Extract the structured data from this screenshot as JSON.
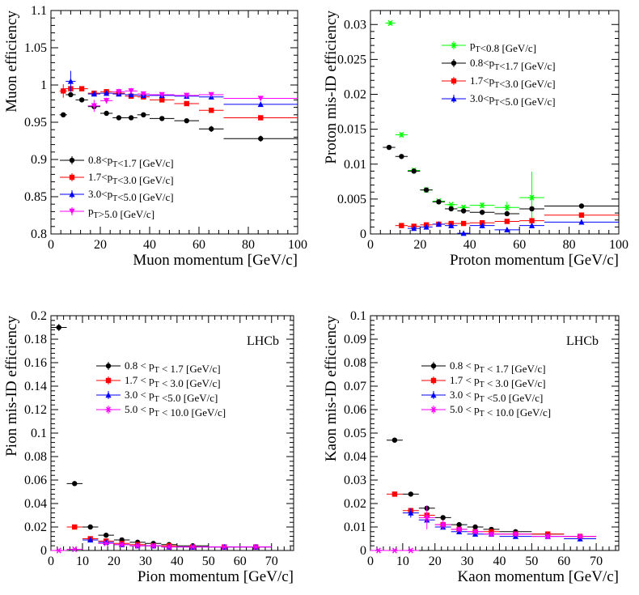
{
  "chart_data": [
    {
      "id": "muon",
      "type": "scatter",
      "xlabel": "Muon momentum [GeV/c]",
      "ylabel": "Muon efficiency",
      "xlim": [
        0,
        100
      ],
      "ylim": [
        0.8,
        1.1
      ],
      "xticks": [
        0,
        20,
        40,
        60,
        80,
        100
      ],
      "yticks": [
        0.8,
        0.85,
        0.9,
        0.95,
        1,
        1.05,
        1.1
      ],
      "ytick_labels": [
        "0.8",
        "0.85",
        "0.9",
        "0.95",
        "1",
        "1.05",
        "1.1"
      ],
      "legend_position": "bottom-left",
      "brand": "",
      "series": [
        {
          "name": "0.8<p_T<1.7 [GeV/c]",
          "color": "#000000",
          "marker": "circle",
          "x": [
            5,
            8,
            12.5,
            17.5,
            22.5,
            27.5,
            32.5,
            37.5,
            45,
            55,
            65,
            85
          ],
          "xerr": [
            1.5,
            2,
            2.5,
            2.5,
            2.5,
            2.5,
            2.5,
            2.5,
            5,
            5,
            5,
            15
          ],
          "y": [
            0.96,
            0.987,
            0.98,
            0.971,
            0.962,
            0.956,
            0.956,
            0.96,
            0.955,
            0.952,
            0.941,
            0.928
          ],
          "yerr": [
            0.002,
            0.002,
            0.002,
            0.002,
            0.002,
            0.002,
            0.002,
            0.002,
            0.002,
            0.003,
            0.004,
            0.004
          ]
        },
        {
          "name": "1.7<p_T<3.0 [GeV/c]",
          "color": "#ff0000",
          "marker": "square",
          "x": [
            5,
            8,
            12.5,
            17.5,
            22.5,
            27.5,
            32.5,
            37.5,
            45,
            55,
            65,
            85
          ],
          "xerr": [
            1.5,
            2,
            2.5,
            2.5,
            2.5,
            2.5,
            2.5,
            2.5,
            5,
            5,
            5,
            15
          ],
          "y": [
            0.992,
            0.995,
            0.995,
            0.989,
            0.991,
            0.989,
            0.985,
            0.984,
            0.98,
            0.975,
            0.966,
            0.956
          ],
          "yerr": [
            0.009,
            0.004,
            0.002,
            0.002,
            0.002,
            0.002,
            0.002,
            0.002,
            0.002,
            0.002,
            0.002,
            0.002
          ]
        },
        {
          "name": "3.0<p_T<5.0 [GeV/c]",
          "color": "#0000ff",
          "marker": "triangle",
          "x": [
            8,
            17.5,
            22.5,
            27.5,
            32.5,
            37.5,
            45,
            55,
            65,
            85
          ],
          "xerr": [
            2,
            2.5,
            2.5,
            2.5,
            2.5,
            2.5,
            5,
            5,
            5,
            15
          ],
          "y": [
            1.005,
            0.988,
            0.989,
            0.988,
            0.987,
            0.986,
            0.986,
            0.985,
            0.984,
            0.974
          ],
          "yerr": [
            0.014,
            0.003,
            0.002,
            0.002,
            0.002,
            0.002,
            0.002,
            0.002,
            0.002,
            0.002
          ]
        },
        {
          "name": "p_T>5.0 [GeV/c]",
          "color": "#ff00ff",
          "marker": "triangle-down",
          "x": [
            17.5,
            22.5,
            27.5,
            32.5,
            37.5,
            45,
            55,
            65,
            85
          ],
          "xerr": [
            2.5,
            2.5,
            2.5,
            2.5,
            2.5,
            5,
            5,
            5,
            15
          ],
          "y": [
            0.972,
            0.979,
            0.991,
            0.992,
            0.988,
            0.987,
            0.986,
            0.987,
            0.982
          ],
          "yerr": [
            0.008,
            0.004,
            0.004,
            0.004,
            0.003,
            0.002,
            0.002,
            0.002,
            0.002
          ]
        }
      ]
    },
    {
      "id": "proton",
      "type": "scatter",
      "xlabel": "Proton momentum [GeV/c]",
      "ylabel": "Proton  mis-ID efficiency",
      "xlim": [
        0,
        100
      ],
      "ylim": [
        0,
        0.032
      ],
      "xticks": [
        0,
        20,
        40,
        60,
        80,
        100
      ],
      "yticks": [
        0,
        0.005,
        0.01,
        0.015,
        0.02,
        0.025,
        0.03
      ],
      "ytick_labels": [
        "0",
        "0.005",
        "0.01",
        "0.015",
        "0.02",
        "0.025",
        "0.03"
      ],
      "legend_position": "top-right",
      "brand": "",
      "series": [
        {
          "name": "p_T<0.8 [GeV/c]",
          "color": "#00ff00",
          "marker": "star",
          "x": [
            8,
            12.5,
            17.5,
            22.5,
            27.5,
            32.5,
            37.5,
            45,
            55,
            65
          ],
          "xerr": [
            2,
            2.5,
            2.5,
            2.5,
            2.5,
            2.5,
            2.5,
            5,
            5,
            5
          ],
          "y": [
            0.0302,
            0.0142,
            0.0091,
            0.0063,
            0.0047,
            0.0042,
            0.0038,
            0.0041,
            0.0038,
            0.0052
          ],
          "yerr": [
            0.0003,
            0.0003,
            0.0003,
            0.0002,
            0.0002,
            0.0002,
            0.0003,
            0.0004,
            0.0008,
            0.0037
          ]
        },
        {
          "name": "0.8<p_T<1.7 [GeV/c]",
          "color": "#000000",
          "marker": "circle",
          "x": [
            7.5,
            12.5,
            17.5,
            22.5,
            27.5,
            32.5,
            37.5,
            45,
            55,
            65,
            85
          ],
          "xerr": [
            2.5,
            2.5,
            2.5,
            2.5,
            2.5,
            2.5,
            2.5,
            5,
            5,
            5,
            15
          ],
          "y": [
            0.0124,
            0.0111,
            0.009,
            0.0063,
            0.0046,
            0.0036,
            0.0033,
            0.0031,
            0.0029,
            0.0036,
            0.004
          ],
          "yerr": [
            0.0002,
            0.0002,
            0.0002,
            0.0002,
            0.0002,
            0.0002,
            0.0002,
            0.0002,
            0.0002,
            0.0003,
            0.0003
          ]
        },
        {
          "name": "1.7<p_T<3.0 [GeV/c]",
          "color": "#ff0000",
          "marker": "square",
          "x": [
            12.5,
            17.5,
            22.5,
            27.5,
            32.5,
            37.5,
            45,
            55,
            65,
            85
          ],
          "xerr": [
            2.5,
            2.5,
            2.5,
            2.5,
            2.5,
            2.5,
            5,
            5,
            5,
            15
          ],
          "y": [
            0.0012,
            0.0011,
            0.0013,
            0.0014,
            0.0015,
            0.0015,
            0.0016,
            0.0018,
            0.0019,
            0.0027
          ],
          "yerr": [
            0.0002,
            0.0002,
            0.0002,
            0.0002,
            0.0002,
            0.0002,
            0.0002,
            0.0002,
            0.0002,
            0.0002
          ]
        },
        {
          "name": "3.0<p_T<5.0 [GeV/c]",
          "color": "#0000ff",
          "marker": "triangle",
          "x": [
            17.5,
            22.5,
            27.5,
            32.5,
            37.5,
            45,
            55,
            65,
            85
          ],
          "xerr": [
            2.5,
            2.5,
            2.5,
            2.5,
            2.5,
            5,
            5,
            5,
            15
          ],
          "y": [
            0.0008,
            0.001,
            0.0014,
            0.0012,
            0.0001,
            0.0012,
            0.0006,
            0.0012,
            0.0017
          ],
          "yerr": [
            0.0003,
            0.0003,
            0.0003,
            0.0003,
            0.0003,
            0.0003,
            0.0003,
            0.0003,
            0.0003
          ]
        }
      ]
    },
    {
      "id": "pion",
      "type": "scatter",
      "xlabel": "Pion momentum [GeV/c]",
      "ylabel": "Pion mis-ID efficiency",
      "xlim": [
        0,
        77
      ],
      "ylim": [
        0,
        0.2
      ],
      "xticks": [
        0,
        10,
        20,
        30,
        40,
        50,
        60,
        70
      ],
      "yticks": [
        0,
        0.02,
        0.04,
        0.06,
        0.08,
        0.1,
        0.12,
        0.14,
        0.16,
        0.18,
        0.2
      ],
      "ytick_labels": [
        "0",
        "0.02",
        "0.04",
        "0.06",
        "0.08",
        "0.1",
        "0.12",
        "0.14",
        "0.16",
        "0.18",
        "0.2"
      ],
      "legend_position": "top-right",
      "brand": "LHCb",
      "series": [
        {
          "name": "0.8 < p_T < 1.7 [GeV/c]",
          "color": "#000000",
          "marker": "circle",
          "x": [
            2.5,
            7.5,
            12.5,
            17.5,
            22.5,
            27.5,
            32.5,
            37.5,
            45,
            55,
            65
          ],
          "xerr": [
            2.5,
            2.5,
            2.5,
            2.5,
            2.5,
            2.5,
            2.5,
            2.5,
            5,
            5,
            5
          ],
          "y": [
            0.19,
            0.057,
            0.02,
            0.013,
            0.009,
            0.007,
            0.006,
            0.005,
            0.004,
            0.003,
            0.003
          ],
          "yerr": [
            0.003,
            0.001,
            0.001,
            0.001,
            0.001,
            0.001,
            0.001,
            0.001,
            0.001,
            0.001,
            0.001
          ]
        },
        {
          "name": "1.7 < p_T < 3.0 [GeV/c]",
          "color": "#ff0000",
          "marker": "square",
          "x": [
            7.5,
            12.5,
            17.5,
            22.5,
            27.5,
            32.5,
            37.5,
            45,
            55,
            65
          ],
          "xerr": [
            2.5,
            2.5,
            2.5,
            2.5,
            2.5,
            2.5,
            2.5,
            5,
            5,
            5
          ],
          "y": [
            0.02,
            0.01,
            0.008,
            0.006,
            0.005,
            0.004,
            0.004,
            0.003,
            0.003,
            0.003
          ],
          "yerr": [
            0.001,
            0.001,
            0.001,
            0.001,
            0.001,
            0.001,
            0.001,
            0.001,
            0.001,
            0.001
          ]
        },
        {
          "name": "3.0 < p_T <5.0 [GeV/c]",
          "color": "#0000ff",
          "marker": "triangle",
          "x": [
            12.5,
            17.5,
            22.5,
            27.5,
            32.5,
            37.5,
            45,
            55,
            65
          ],
          "xerr": [
            2.5,
            2.5,
            2.5,
            2.5,
            2.5,
            2.5,
            5,
            5,
            5
          ],
          "y": [
            0.009,
            0.007,
            0.005,
            0.004,
            0.004,
            0.003,
            0.003,
            0.003,
            0.003
          ],
          "yerr": [
            0.001,
            0.001,
            0.001,
            0.001,
            0.001,
            0.001,
            0.001,
            0.001,
            0.001
          ]
        },
        {
          "name": "5.0 < p_T < 10.0 [GeV/c]",
          "color": "#ff00ff",
          "marker": "star",
          "x": [
            2.5,
            7.5,
            17.5,
            22.5,
            27.5,
            32.5,
            37.5,
            45,
            55,
            65
          ],
          "xerr": [
            2.5,
            2.5,
            2.5,
            2.5,
            2.5,
            2.5,
            2.5,
            5,
            5,
            5
          ],
          "y": [
            0.0,
            0.001,
            0.006,
            0.005,
            0.004,
            0.004,
            0.003,
            0.003,
            0.003,
            0.003
          ],
          "yerr": [
            0.0005,
            0.0005,
            0.001,
            0.001,
            0.001,
            0.001,
            0.001,
            0.001,
            0.001,
            0.001
          ]
        }
      ]
    },
    {
      "id": "kaon",
      "type": "scatter",
      "xlabel": "Kaon momentum [GeV/c]",
      "ylabel": "Kaon mis-ID efficiency",
      "xlim": [
        0,
        77
      ],
      "ylim": [
        0,
        0.1
      ],
      "xticks": [
        0,
        10,
        20,
        30,
        40,
        50,
        60,
        70
      ],
      "yticks": [
        0,
        0.01,
        0.02,
        0.03,
        0.04,
        0.05,
        0.06,
        0.07,
        0.08,
        0.09,
        0.1
      ],
      "ytick_labels": [
        "0",
        "0.01",
        "0.02",
        "0.03",
        "0.04",
        "0.05",
        "0.06",
        "0.07",
        "0.08",
        "0.09",
        "0.1"
      ],
      "legend_position": "top-right",
      "brand": "LHCb",
      "series": [
        {
          "name": "0.8 < p_T < 1.7 [GeV/c]",
          "color": "#000000",
          "marker": "circle",
          "x": [
            7.5,
            12.5,
            17.5,
            22.5,
            27.5,
            32.5,
            37.5,
            45,
            55,
            65
          ],
          "xerr": [
            2.5,
            2.5,
            2.5,
            2.5,
            2.5,
            2.5,
            2.5,
            5,
            5,
            5
          ],
          "y": [
            0.047,
            0.024,
            0.018,
            0.014,
            0.011,
            0.01,
            0.009,
            0.008,
            0.007,
            0.006
          ],
          "yerr": [
            0.001,
            0.001,
            0.001,
            0.001,
            0.001,
            0.001,
            0.001,
            0.001,
            0.001,
            0.001
          ]
        },
        {
          "name": "1.7 < p_T < 3.0 [GeV/c]",
          "color": "#ff0000",
          "marker": "square",
          "x": [
            7.5,
            12.5,
            17.5,
            22.5,
            27.5,
            32.5,
            37.5,
            45,
            55,
            65
          ],
          "xerr": [
            2.5,
            2.5,
            2.5,
            2.5,
            2.5,
            2.5,
            2.5,
            5,
            5,
            5
          ],
          "y": [
            0.024,
            0.017,
            0.015,
            0.011,
            0.009,
            0.008,
            0.008,
            0.007,
            0.007,
            0.006
          ],
          "yerr": [
            0.001,
            0.001,
            0.001,
            0.001,
            0.001,
            0.001,
            0.001,
            0.001,
            0.001,
            0.001
          ]
        },
        {
          "name": "3.0 < p_T <5.0 [GeV/c]",
          "color": "#0000ff",
          "marker": "triangle",
          "x": [
            12.5,
            17.5,
            22.5,
            27.5,
            32.5,
            37.5,
            45,
            55,
            65
          ],
          "xerr": [
            2.5,
            2.5,
            2.5,
            2.5,
            2.5,
            2.5,
            5,
            5,
            5
          ],
          "y": [
            0.016,
            0.013,
            0.01,
            0.008,
            0.007,
            0.007,
            0.006,
            0.006,
            0.005
          ],
          "yerr": [
            0.002,
            0.001,
            0.001,
            0.001,
            0.001,
            0.001,
            0.001,
            0.001,
            0.001
          ]
        },
        {
          "name": "5.0 < p_T < 10.0 [GeV/c]",
          "color": "#ff00ff",
          "marker": "star",
          "x": [
            2.5,
            7.5,
            12.5,
            17.5,
            22.5,
            27.5,
            32.5,
            37.5,
            45,
            55,
            65
          ],
          "xerr": [
            2.5,
            2.5,
            2.5,
            2.5,
            2.5,
            2.5,
            2.5,
            2.5,
            5,
            5,
            5
          ],
          "y": [
            0.0,
            0.0,
            0.0,
            0.014,
            0.011,
            0.009,
            0.008,
            0.007,
            0.007,
            0.006,
            0.006
          ],
          "yerr": [
            0.0005,
            0.0005,
            0.0005,
            0.005,
            0.002,
            0.001,
            0.001,
            0.001,
            0.001,
            0.001,
            0.001
          ]
        }
      ]
    }
  ]
}
